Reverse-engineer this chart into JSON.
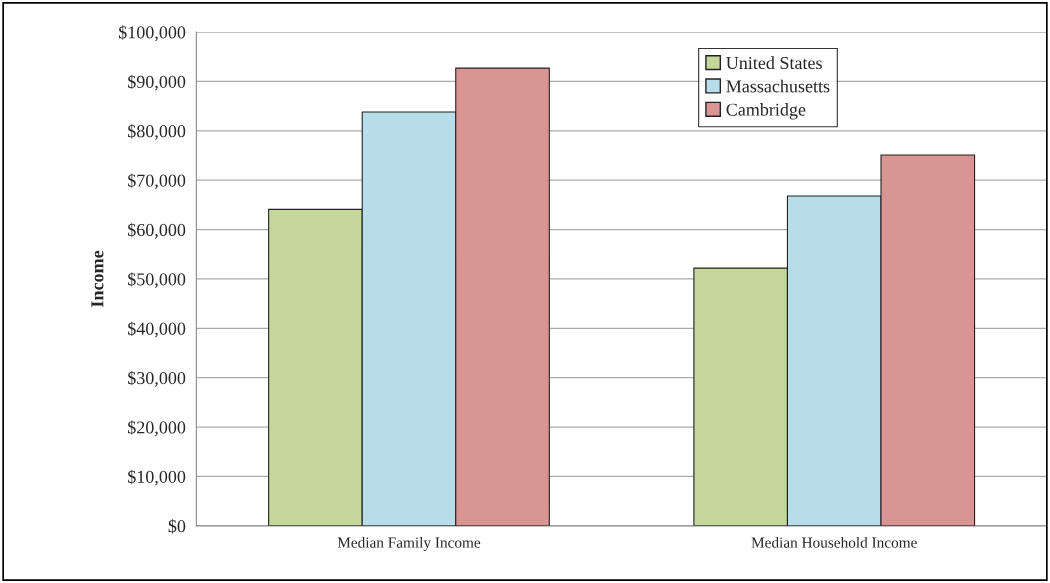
{
  "chart_data": {
    "type": "bar",
    "ylabel": "Income",
    "categories": [
      "Median Family Income",
      "Median Household Income"
    ],
    "series": [
      {
        "name": "United States",
        "color": "#c4d79b",
        "values": [
          64100,
          52200
        ]
      },
      {
        "name": "Massachusetts",
        "color": "#b7dde8",
        "values": [
          83800,
          66800
        ]
      },
      {
        "name": "Cambridge",
        "color": "#d99594",
        "values": [
          92700,
          75100
        ]
      }
    ],
    "ylim": [
      0,
      100000
    ],
    "yticks": [
      {
        "value": 0,
        "label": "$0"
      },
      {
        "value": 10000,
        "label": "$10,000"
      },
      {
        "value": 20000,
        "label": "$20,000"
      },
      {
        "value": 30000,
        "label": "$30,000"
      },
      {
        "value": 40000,
        "label": "$40,000"
      },
      {
        "value": 50000,
        "label": "$50,000"
      },
      {
        "value": 60000,
        "label": "$60,000"
      },
      {
        "value": 70000,
        "label": "$70,000"
      },
      {
        "value": 80000,
        "label": "$80,000"
      },
      {
        "value": 90000,
        "label": "$90,000"
      },
      {
        "value": 100000,
        "label": "$100,000"
      }
    ],
    "grid": "y",
    "legend": "top right"
  }
}
